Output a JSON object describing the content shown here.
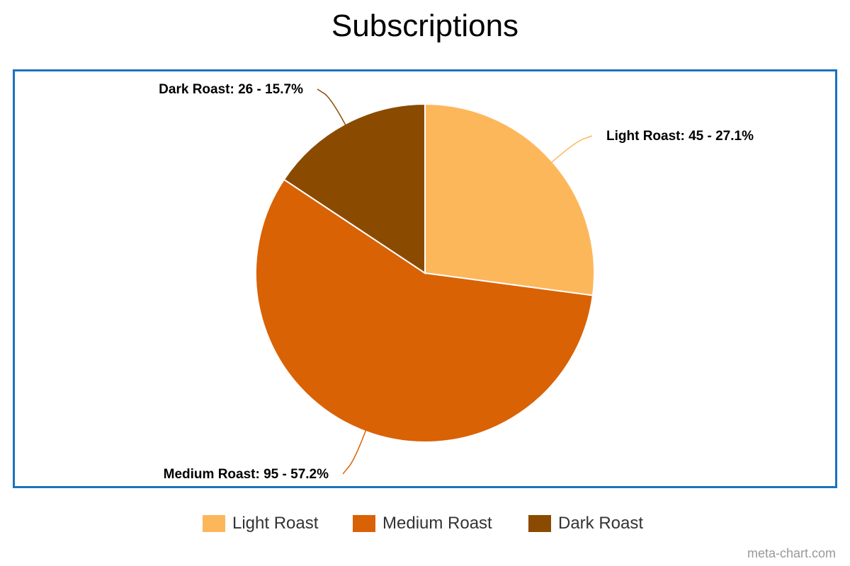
{
  "chart_data": {
    "type": "pie",
    "title": "Subscriptions",
    "slices": [
      {
        "name": "Light Roast",
        "value": 45,
        "percent": "27.1%",
        "color": "#fdb75b",
        "label": "Light Roast: 45 - 27.1%"
      },
      {
        "name": "Medium Roast",
        "value": 95,
        "percent": "57.2%",
        "color": "#d96205",
        "label": "Medium Roast: 95 - 57.2%"
      },
      {
        "name": "Dark Roast",
        "value": 26,
        "percent": "15.7%",
        "color": "#8a4b00",
        "label": "Dark Roast: 26 - 15.7%"
      }
    ],
    "legend": {
      "position": "bottom"
    }
  },
  "credit": "meta-chart.com",
  "colors": {
    "frame": "#1a73be"
  }
}
